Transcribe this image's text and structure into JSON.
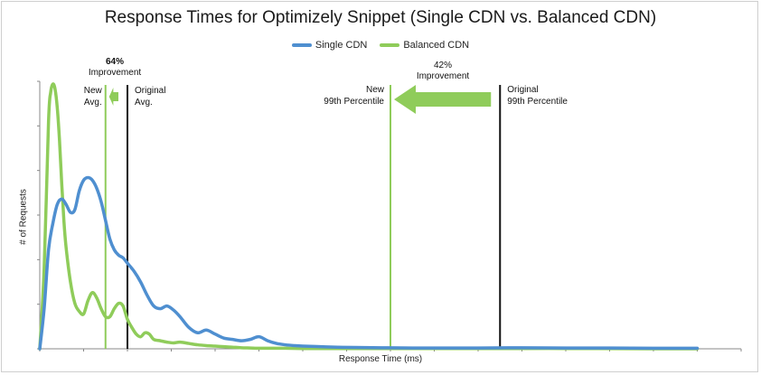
{
  "chart_data": {
    "type": "line",
    "title": "Response Times for Optimizely Snippet (Single CDN vs. Balanced CDN)",
    "xlabel": "Response Time (ms)",
    "ylabel": "# of Requests",
    "xlim": [
      0,
      1600
    ],
    "ylim": [
      0,
      1000
    ],
    "grid": false,
    "legend_position": "top-center",
    "series": [
      {
        "name": "Single CDN",
        "color": "#4f8fd0",
        "x": [
          0,
          10,
          20,
          30,
          40,
          50,
          60,
          70,
          80,
          90,
          100,
          110,
          120,
          130,
          140,
          150,
          160,
          170,
          180,
          190,
          200,
          215,
          230,
          245,
          260,
          275,
          290,
          305,
          320,
          340,
          360,
          380,
          400,
          420,
          440,
          460,
          480,
          500,
          520,
          540,
          560,
          580,
          600,
          640,
          680,
          720,
          780,
          850,
          1000,
          1100,
          1200,
          1300,
          1400,
          1500
        ],
        "y": [
          0,
          150,
          370,
          470,
          540,
          560,
          540,
          510,
          520,
          590,
          630,
          640,
          630,
          600,
          550,
          480,
          410,
          370,
          350,
          340,
          320,
          290,
          250,
          200,
          160,
          150,
          160,
          145,
          120,
          80,
          60,
          70,
          55,
          40,
          35,
          30,
          35,
          45,
          30,
          20,
          15,
          12,
          10,
          8,
          6,
          5,
          4,
          3,
          3,
          4,
          3,
          3,
          2,
          2
        ]
      },
      {
        "name": "Balanced CDN",
        "color": "#8fcc5a",
        "x": [
          0,
          10,
          20,
          25,
          30,
          35,
          40,
          45,
          50,
          55,
          60,
          70,
          80,
          90,
          100,
          110,
          120,
          130,
          140,
          150,
          160,
          170,
          180,
          190,
          200,
          210,
          220,
          230,
          240,
          250,
          260,
          275,
          290,
          305,
          320,
          340,
          360,
          380,
          400,
          420,
          440,
          460,
          480,
          500,
          520,
          560,
          600,
          700,
          800,
          1000,
          1200,
          1400,
          1500
        ],
        "y": [
          0,
          300,
          850,
          960,
          990,
          970,
          900,
          780,
          620,
          480,
          380,
          250,
          170,
          140,
          130,
          180,
          210,
          190,
          150,
          120,
          120,
          150,
          170,
          160,
          110,
          80,
          55,
          45,
          60,
          55,
          35,
          30,
          25,
          22,
          25,
          20,
          15,
          12,
          10,
          8,
          6,
          4,
          3,
          2,
          2,
          2,
          1,
          1,
          1,
          1,
          1,
          0,
          0
        ]
      }
    ],
    "reference_lines": [
      {
        "x": 150,
        "color": "#8fcc5a",
        "label_lines": [
          "New",
          "Avg."
        ]
      },
      {
        "x": 200,
        "color": "#111111",
        "label_lines": [
          "Original",
          "Avg."
        ]
      },
      {
        "x": 800,
        "color": "#8fcc5a",
        "label_lines": [
          "New",
          "99th Percentile"
        ]
      },
      {
        "x": 1050,
        "color": "#111111",
        "label_lines": [
          "Original",
          "99th Percentile"
        ]
      }
    ],
    "improvements": [
      {
        "label_lines": [
          "64%",
          "Improvement"
        ],
        "from_x": 200,
        "to_x": 150
      },
      {
        "label_lines": [
          "42%",
          "Improvement"
        ],
        "from_x": 1050,
        "to_x": 800
      }
    ]
  }
}
